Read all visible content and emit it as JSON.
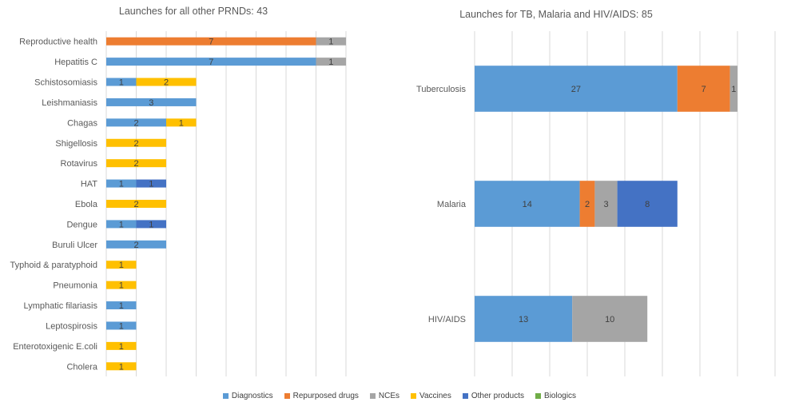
{
  "chart_data": [
    {
      "type": "bar",
      "orientation": "horizontal",
      "stacked": true,
      "title": "Launches for all other PRNDs: 43",
      "categories": [
        "Reproductive health",
        "Hepatitis C",
        "Schistosomiasis",
        "Leishmaniasis",
        "Chagas",
        "Shigellosis",
        "Rotavirus",
        "HAT",
        "Ebola",
        "Dengue",
        "Buruli Ulcer",
        "Typhoid & paratyphoid",
        "Pneumonia",
        "Lymphatic filariasis",
        "Leptospirosis",
        "Enterotoxigenic E.coli",
        "Cholera"
      ],
      "series": [
        {
          "name": "Diagnostics",
          "values": [
            0,
            7,
            1,
            3,
            2,
            0,
            0,
            1,
            0,
            1,
            2,
            0,
            0,
            1,
            1,
            0,
            0
          ]
        },
        {
          "name": "Repurposed drugs",
          "values": [
            7,
            0,
            0,
            0,
            0,
            0,
            0,
            0,
            0,
            0,
            0,
            0,
            0,
            0,
            0,
            0,
            0
          ]
        },
        {
          "name": "NCEs",
          "values": [
            1,
            1,
            0,
            0,
            0,
            0,
            0,
            0,
            0,
            0,
            0,
            0,
            0,
            0,
            0,
            0,
            0
          ]
        },
        {
          "name": "Vaccines",
          "values": [
            0,
            0,
            2,
            0,
            1,
            2,
            2,
            0,
            2,
            0,
            0,
            1,
            1,
            0,
            0,
            1,
            1
          ]
        },
        {
          "name": "Other products",
          "values": [
            0,
            0,
            0,
            0,
            0,
            0,
            0,
            1,
            0,
            1,
            0,
            0,
            0,
            0,
            0,
            0,
            0
          ]
        },
        {
          "name": "Biologics",
          "values": [
            0,
            0,
            0,
            0,
            0,
            0,
            0,
            0,
            0,
            0,
            0,
            0,
            0,
            0,
            0,
            0,
            0
          ]
        }
      ],
      "xlim": [
        0,
        8
      ],
      "grid": true
    },
    {
      "type": "bar",
      "orientation": "horizontal",
      "stacked": true,
      "title": "Launches for TB, Malaria and HIV/AIDS: 85",
      "categories": [
        "Tuberculosis",
        "Malaria",
        "HIV/AIDS"
      ],
      "series": [
        {
          "name": "Diagnostics",
          "values": [
            27,
            14,
            13
          ]
        },
        {
          "name": "Repurposed drugs",
          "values": [
            7,
            2,
            0
          ]
        },
        {
          "name": "NCEs",
          "values": [
            1,
            3,
            10
          ]
        },
        {
          "name": "Vaccines",
          "values": [
            0,
            0,
            0
          ]
        },
        {
          "name": "Other products",
          "values": [
            0,
            8,
            0
          ]
        },
        {
          "name": "Biologics",
          "values": [
            0,
            0,
            0
          ]
        }
      ],
      "xlim": [
        0,
        40
      ],
      "grid": true
    }
  ],
  "legend": {
    "placement": "bottom",
    "items": [
      {
        "label": "Diagnostics",
        "color": "#5b9bd5"
      },
      {
        "label": "Repurposed drugs",
        "color": "#ed7d31"
      },
      {
        "label": "NCEs",
        "color": "#a5a5a5"
      },
      {
        "label": "Vaccines",
        "color": "#ffc000"
      },
      {
        "label": "Other products",
        "color": "#4472c4"
      },
      {
        "label": "Biologics",
        "color": "#70ad47"
      }
    ]
  }
}
